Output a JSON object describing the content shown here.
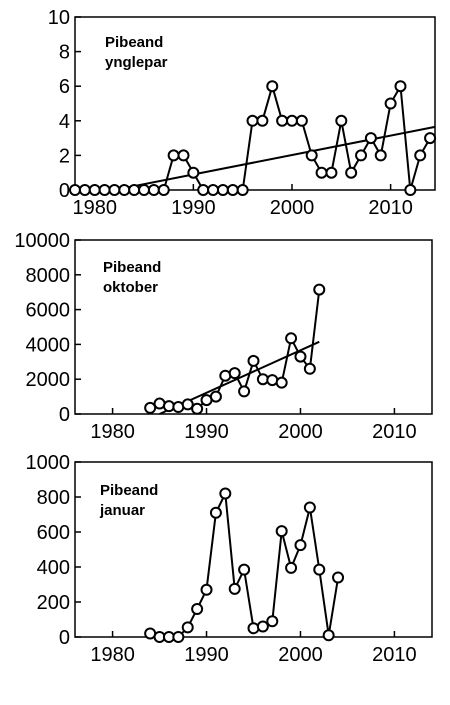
{
  "chart_data": [
    {
      "type": "line",
      "title": "",
      "annotation_lines": [
        "Pibeand",
        "ynglepar"
      ],
      "xlim": [
        1978,
        2014.5
      ],
      "ylim": [
        0,
        10
      ],
      "xticks": [
        1980,
        1990,
        2000,
        2010
      ],
      "yticks": [
        0,
        2,
        4,
        6,
        8,
        10
      ],
      "grid": false,
      "series": [
        {
          "x": [
            1978,
            1979,
            1980,
            1981,
            1982,
            1983,
            1984,
            1985,
            1986,
            1987,
            1988,
            1989,
            1990,
            1991,
            1992,
            1993,
            1994,
            1995,
            1996,
            1997,
            1998,
            1999,
            2000,
            2001,
            2002,
            2003,
            2004,
            2005,
            2006,
            2007,
            2008,
            2009,
            2010,
            2011,
            2012,
            2013,
            2014
          ],
          "y": [
            0,
            0,
            0,
            0,
            0,
            0,
            0,
            0,
            0,
            0,
            2,
            2,
            1,
            0,
            0,
            0,
            0,
            0,
            4,
            4,
            6,
            4,
            4,
            4,
            2,
            1,
            1,
            4,
            1,
            2,
            3,
            2,
            5,
            6,
            0,
            2,
            3
          ],
          "markers": "open-circle"
        }
      ],
      "trendline": {
        "x": [
          1982,
          2014.5
        ],
        "y": [
          0,
          3.65
        ]
      }
    },
    {
      "type": "line",
      "title": "",
      "annotation_lines": [
        "Pibeand",
        "oktober"
      ],
      "xlim": [
        1976,
        2014
      ],
      "ylim": [
        0,
        10000
      ],
      "xticks": [
        1980,
        1990,
        2000,
        2010
      ],
      "yticks": [
        0,
        2000,
        4000,
        6000,
        8000,
        10000
      ],
      "grid": false,
      "series": [
        {
          "x": [
            1984,
            1985,
            1986,
            1987,
            1988,
            1989,
            1990,
            1991,
            1992,
            1993,
            1994,
            1995,
            1996,
            1997,
            1998,
            1999,
            2000,
            2001,
            2002
          ],
          "y": [
            350,
            600,
            450,
            400,
            550,
            300,
            800,
            1000,
            2200,
            2350,
            1300,
            3050,
            2000,
            1950,
            1800,
            4350,
            3300,
            2600,
            7150
          ],
          "markers": "open-circle"
        }
      ],
      "trendline": {
        "x": [
          1985,
          2002
        ],
        "y": [
          0,
          4150
        ]
      }
    },
    {
      "type": "line",
      "title": "",
      "annotation_lines": [
        "Pibeand",
        "januar"
      ],
      "xlim": [
        1976,
        2014
      ],
      "ylim": [
        0,
        1000
      ],
      "xticks": [
        1980,
        1990,
        2000,
        2010
      ],
      "yticks": [
        0,
        200,
        400,
        600,
        800,
        1000
      ],
      "grid": false,
      "series": [
        {
          "x": [
            1984,
            1985,
            1986,
            1987,
            1988,
            1989,
            1990,
            1991,
            1992,
            1993,
            1994,
            1995,
            1996,
            1997,
            1998,
            1999,
            2000,
            2001,
            2002,
            2003,
            2004
          ],
          "y": [
            20,
            0,
            0,
            0,
            55,
            160,
            270,
            710,
            820,
            275,
            385,
            50,
            60,
            90,
            605,
            395,
            525,
            740,
            385,
            10,
            340
          ],
          "markers": "open-circle"
        }
      ]
    }
  ]
}
